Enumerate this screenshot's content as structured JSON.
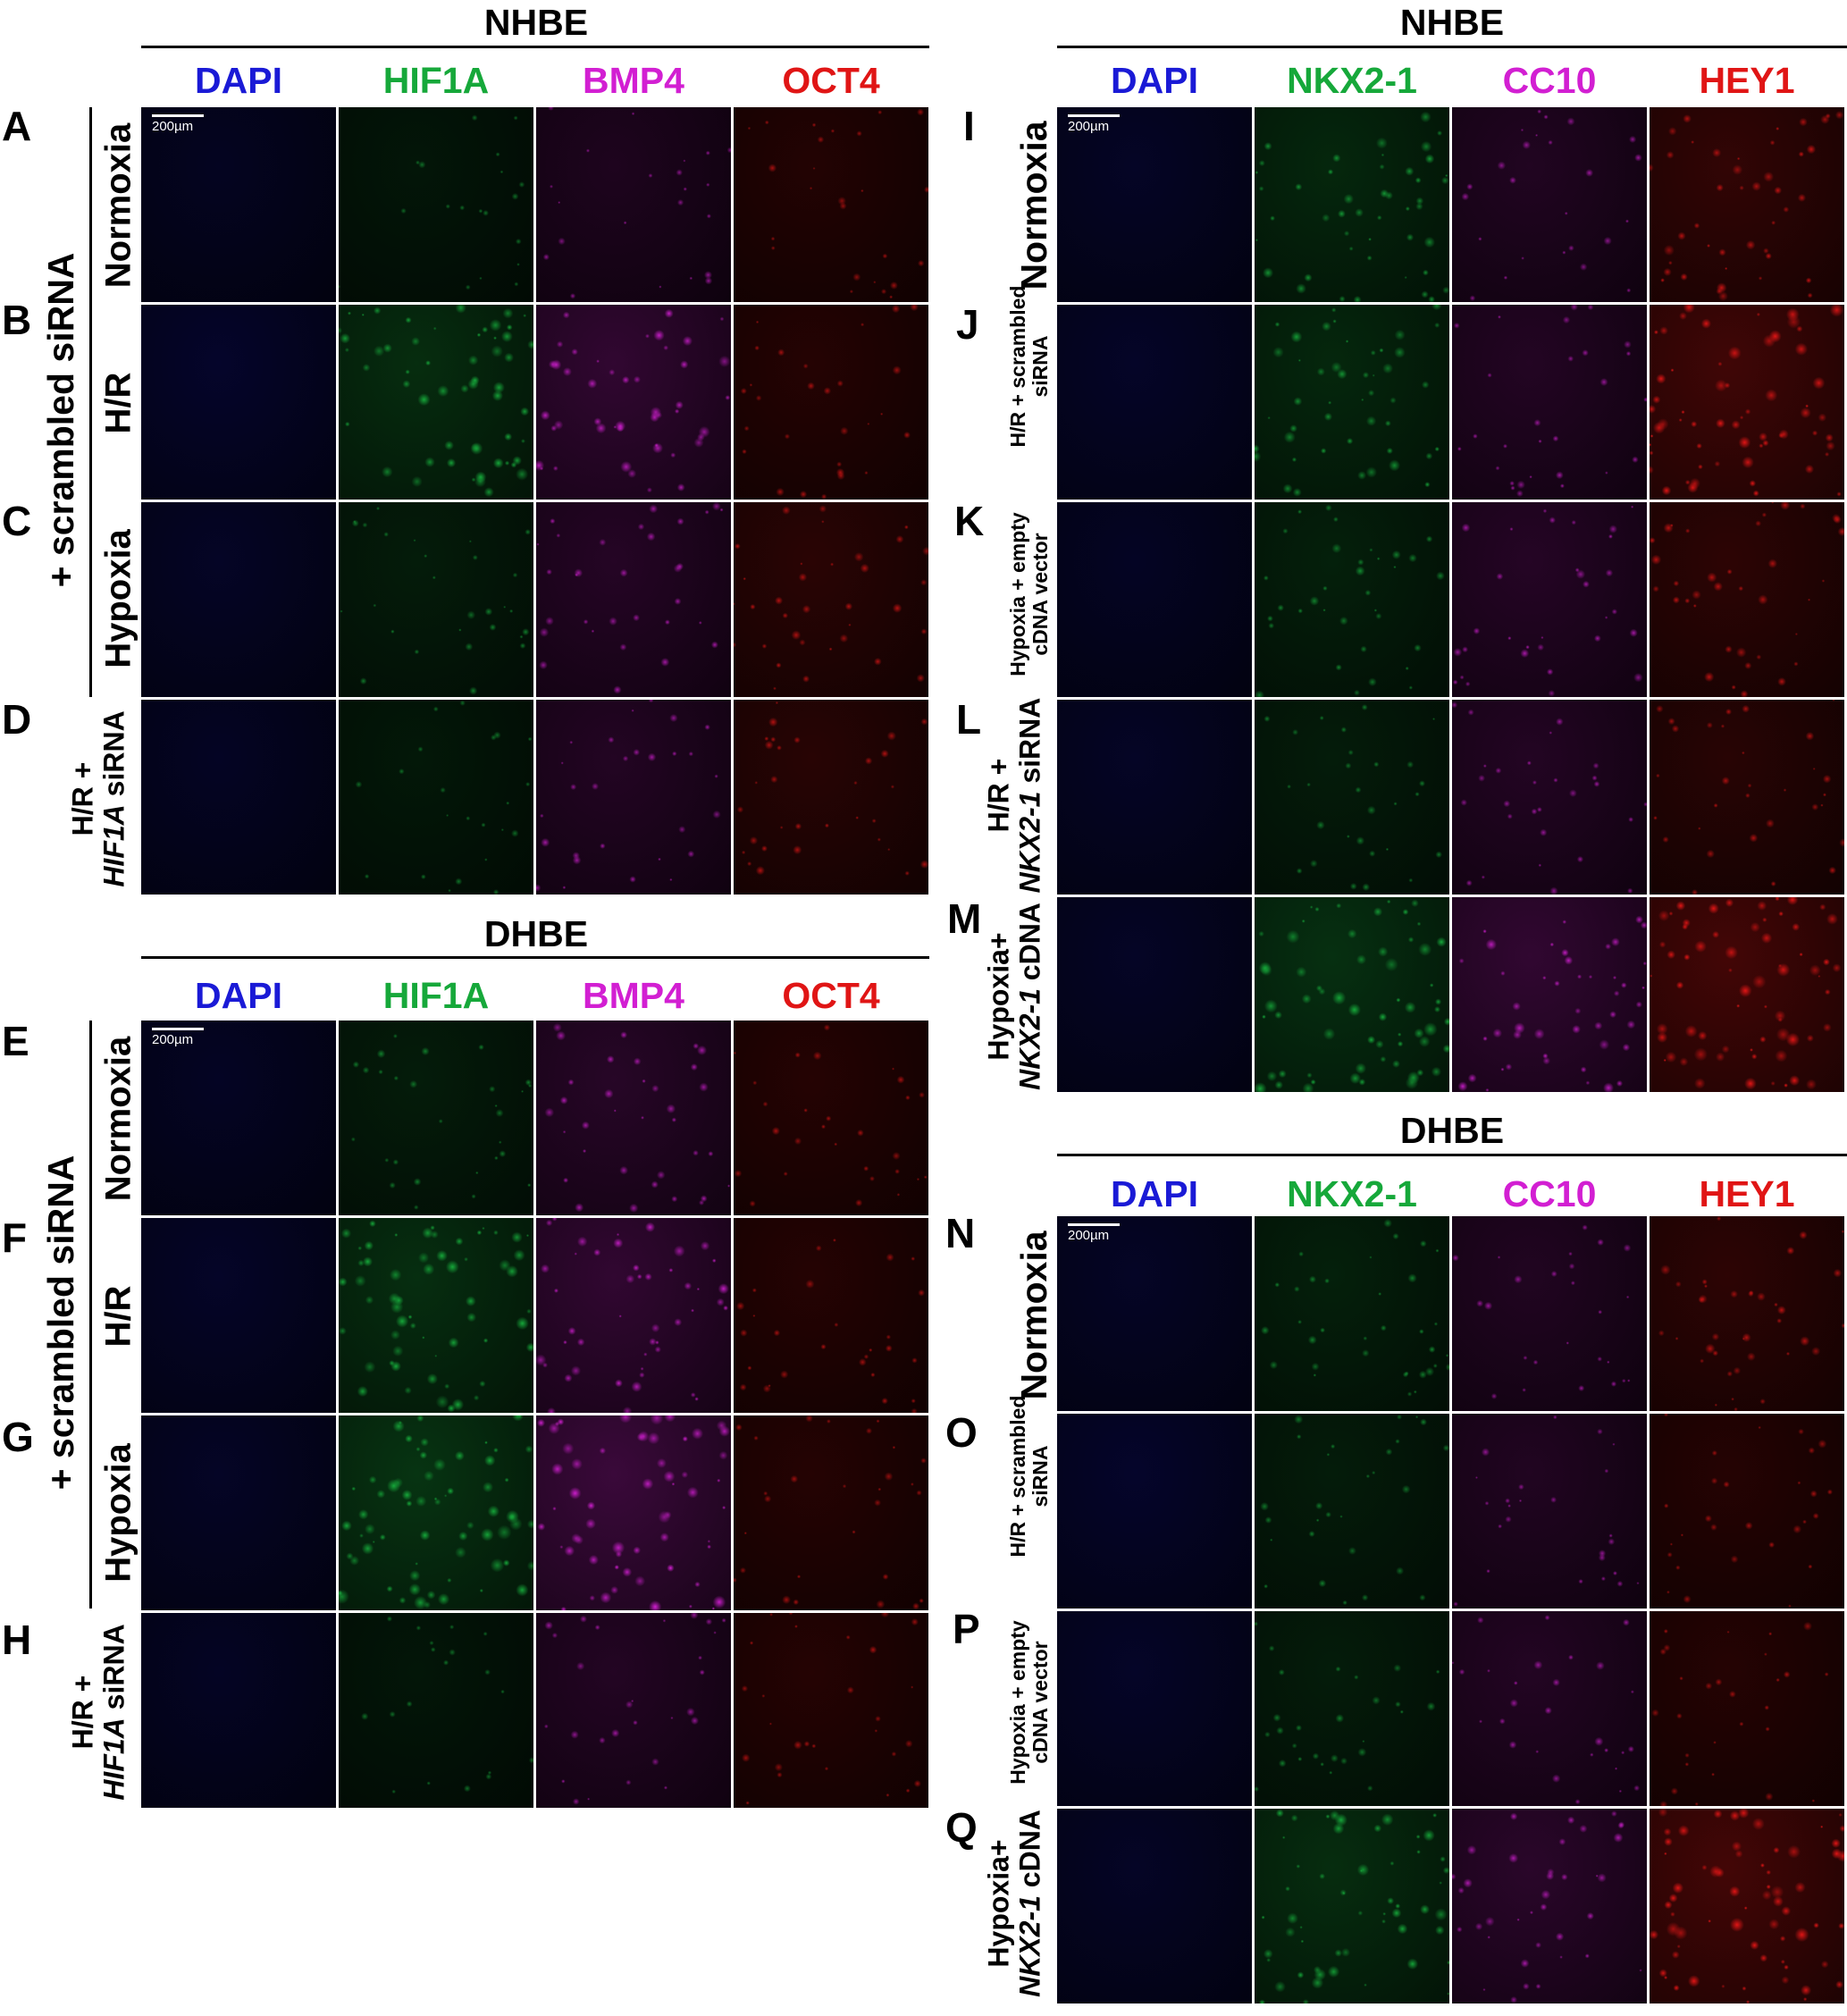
{
  "groups": {
    "nhbe_left": {
      "title": "NHBE",
      "columns": [
        "DAPI",
        "HIF1A",
        "BMP4",
        "OCT4"
      ]
    },
    "dhbe_left": {
      "title": "DHBE",
      "columns": [
        "DAPI",
        "HIF1A",
        "BMP4",
        "OCT4"
      ]
    },
    "nhbe_right": {
      "title": "NHBE",
      "columns": [
        "DAPI",
        "NKX2-1",
        "CC10",
        "HEY1"
      ]
    },
    "dhbe_right": {
      "title": "DHBE",
      "columns": [
        "DAPI",
        "NKX2-1",
        "CC10",
        "HEY1"
      ]
    }
  },
  "column_colors": {
    "DAPI": "#1a1ad6",
    "HIF1A": "#16a83a",
    "BMP4": "#d21fd2",
    "OCT4": "#e01515",
    "NKX2-1": "#16a83a",
    "CC10": "#d21fd2",
    "HEY1": "#e01515"
  },
  "left_rows": {
    "letters_top": [
      "A",
      "B",
      "C",
      "D"
    ],
    "letters_bottom": [
      "E",
      "F",
      "G",
      "H"
    ],
    "conditions": [
      "Normoxia",
      "H/R",
      "Hypoxia"
    ],
    "group_label": "+ scrambled siRNA",
    "knockdown_label_line1": "H/R +",
    "knockdown_gene": "HIF1A",
    "knockdown_suffix": " siRNA"
  },
  "right_rows": {
    "letters_top": [
      "I",
      "J",
      "K",
      "L",
      "M"
    ],
    "letters_bottom": [
      "N",
      "O",
      "P",
      "Q"
    ],
    "normoxia": "Normoxia",
    "scrambled_label": [
      "H/R + scrambled",
      "siRNA"
    ],
    "empty_vector_label": [
      "Hypoxia + empty",
      "cDNA vector"
    ],
    "knockdown_label_line1": "H/R +",
    "knockdown_gene": "NKX2-1",
    "knockdown_suffix": " siRNA",
    "overexpression_line1": "Hypoxia+",
    "overexpression_gene": "NKX2-1",
    "overexpression_suffix": " cDNA"
  },
  "scale_bar": "200µm",
  "panel_intensity": {
    "nhbe_left": [
      [
        0.25,
        0.15,
        0.2,
        0.25
      ],
      [
        0.45,
        0.75,
        0.6,
        0.3
      ],
      [
        0.35,
        0.3,
        0.35,
        0.4
      ],
      [
        0.3,
        0.2,
        0.3,
        0.35
      ]
    ],
    "dhbe_left": [
      [
        0.3,
        0.3,
        0.4,
        0.3
      ],
      [
        0.4,
        0.8,
        0.6,
        0.3
      ],
      [
        0.35,
        0.95,
        0.8,
        0.3
      ],
      [
        0.3,
        0.15,
        0.3,
        0.3
      ]
    ],
    "nhbe_right": [
      [
        0.35,
        0.6,
        0.25,
        0.55
      ],
      [
        0.4,
        0.6,
        0.3,
        0.85
      ],
      [
        0.3,
        0.4,
        0.35,
        0.45
      ],
      [
        0.35,
        0.3,
        0.3,
        0.35
      ],
      [
        0.35,
        0.85,
        0.6,
        0.9
      ]
    ],
    "dhbe_right": [
      [
        0.35,
        0.4,
        0.25,
        0.45
      ],
      [
        0.45,
        0.3,
        0.25,
        0.3
      ],
      [
        0.4,
        0.3,
        0.3,
        0.3
      ],
      [
        0.35,
        0.75,
        0.45,
        0.9
      ]
    ]
  }
}
